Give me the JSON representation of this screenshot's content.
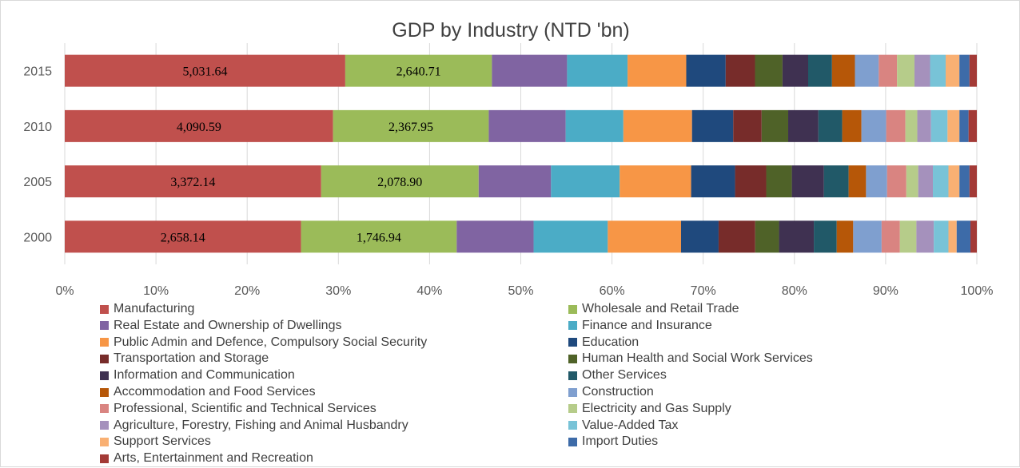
{
  "chart_data": {
    "type": "bar",
    "orientation": "horizontal",
    "stacked": "percent",
    "title": "GDP by Industry (NTD 'bn)",
    "categories": [
      "2015",
      "2010",
      "2005",
      "2000"
    ],
    "xlim": [
      0,
      100
    ],
    "xticks": [
      "0%",
      "10%",
      "20%",
      "30%",
      "40%",
      "50%",
      "60%",
      "70%",
      "80%",
      "90%",
      "100%"
    ],
    "legend_position": "bottom",
    "grid": "vertical",
    "series": [
      {
        "name": "Manufacturing",
        "color": "#c0504d",
        "values": [
          30.6,
          29.3,
          28.0,
          25.8
        ],
        "labels": [
          "5,031.64",
          "4,090.59",
          "3,372.14",
          "2,658.14"
        ]
      },
      {
        "name": "Wholesale and Retail Trade",
        "color": "#9bbb59",
        "values": [
          16.0,
          17.0,
          17.2,
          17.0
        ],
        "labels": [
          "2,640.71",
          "2,367.95",
          "2,078.90",
          "1,746.94"
        ]
      },
      {
        "name": "Real Estate and Ownership of Dwellings",
        "color": "#8064a2",
        "values": [
          8.2,
          8.4,
          7.9,
          8.4
        ]
      },
      {
        "name": "Finance and Insurance",
        "color": "#4bacc6",
        "values": [
          6.6,
          6.3,
          7.5,
          8.1
        ]
      },
      {
        "name": "Public Admin and Defence, Compulsory Social Security",
        "color": "#f79646",
        "values": [
          6.4,
          7.5,
          7.8,
          8.0
        ]
      },
      {
        "name": "Education",
        "color": "#1f497d",
        "values": [
          4.3,
          4.5,
          4.8,
          4.1
        ]
      },
      {
        "name": "Transportation and Storage",
        "color": "#772c2a",
        "values": [
          3.2,
          3.1,
          3.4,
          4.0
        ]
      },
      {
        "name": "Human Health and Social Work Services",
        "color": "#4f6228",
        "values": [
          3.0,
          2.9,
          2.8,
          2.6
        ]
      },
      {
        "name": "Information and Communication",
        "color": "#3f3151",
        "values": [
          2.8,
          3.3,
          3.5,
          3.8
        ]
      },
      {
        "name": "Other Services",
        "color": "#215968",
        "values": [
          2.6,
          2.6,
          2.7,
          2.5
        ]
      },
      {
        "name": "Accommodation and Food Services",
        "color": "#b65708",
        "values": [
          2.5,
          2.1,
          1.9,
          1.8
        ]
      },
      {
        "name": "Construction",
        "color": "#7f9fcf",
        "values": [
          2.6,
          2.7,
          2.3,
          3.1
        ]
      },
      {
        "name": "Professional, Scientific and Technical Services",
        "color": "#d98481",
        "values": [
          2.0,
          2.1,
          2.1,
          2.0
        ]
      },
      {
        "name": "Electricity and Gas Supply",
        "color": "#b6cc8a",
        "values": [
          1.9,
          1.3,
          1.3,
          1.8
        ]
      },
      {
        "name": "Agriculture, Forestry, Fishing and Animal Husbandry",
        "color": "#a591bc",
        "values": [
          1.7,
          1.5,
          1.6,
          1.9
        ]
      },
      {
        "name": "Value-Added Tax",
        "color": "#78c3d7",
        "values": [
          1.7,
          1.8,
          1.7,
          1.6
        ]
      },
      {
        "name": "Support Services",
        "color": "#f9b073",
        "values": [
          1.5,
          1.3,
          1.2,
          0.9
        ]
      },
      {
        "name": "Import Duties",
        "color": "#3d6ba8",
        "values": [
          1.1,
          1.0,
          1.1,
          1.5
        ]
      },
      {
        "name": "Arts, Entertainment and Recreation",
        "color": "#a33a36",
        "values": [
          0.8,
          0.9,
          0.8,
          0.7
        ]
      }
    ]
  }
}
